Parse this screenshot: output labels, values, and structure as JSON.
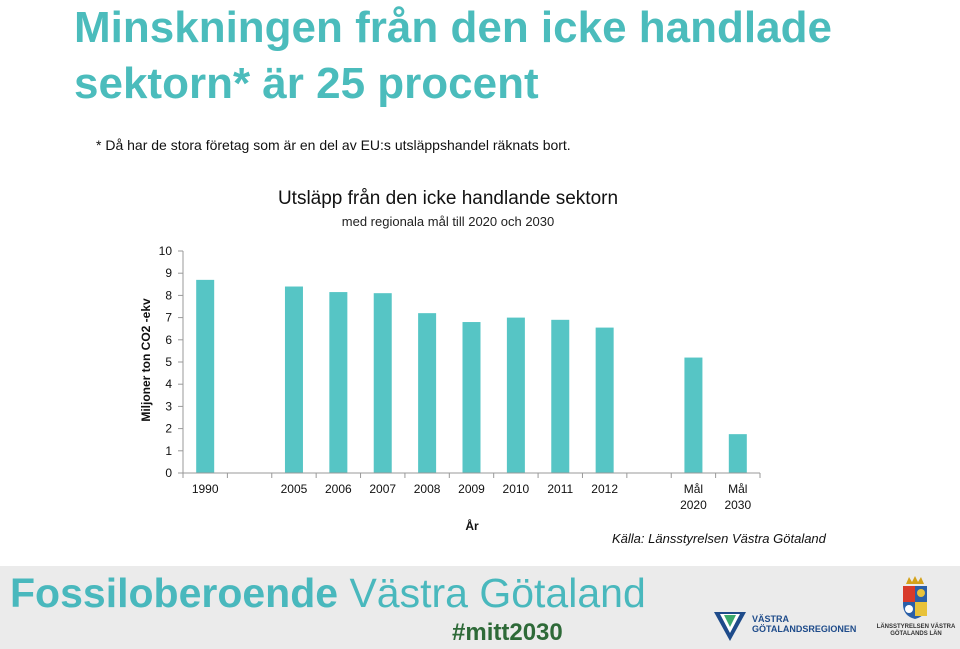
{
  "slide": {
    "title": "Minskningen från den icke handlade sektorn* är 25 procent",
    "footnote": "* Då har de stora företag som är en del av EU:s utsläppshandel räknats bort.",
    "source": "Källa: Länsstyrelsen Västra Götaland"
  },
  "chart_data": {
    "type": "bar",
    "title": "Utsläpp från den icke handlande sektorn",
    "subtitle": "med regionala mål till 2020 och 2030",
    "categories": [
      "1990",
      "",
      "2005",
      "2006",
      "2007",
      "2008",
      "2009",
      "2010",
      "2011",
      "2012",
      "",
      "Mål 2020",
      "Mål 2030"
    ],
    "values": [
      8.7,
      null,
      8.4,
      8.15,
      8.1,
      7.2,
      6.8,
      7.0,
      6.9,
      6.55,
      null,
      5.2,
      1.75
    ],
    "xlabel": "År",
    "ylabel": "Miljoner ton CO2 -ekv",
    "ylim": [
      0,
      10
    ],
    "yticks": [
      0,
      1,
      2,
      3,
      4,
      5,
      6,
      7,
      8,
      9,
      10
    ],
    "grid": false,
    "bar_color": "#56c5c5"
  },
  "footer": {
    "brand_bold": "Fossiloberoende",
    "brand_light": " Västra Götaland",
    "hashtag": "#mitt2030",
    "vgr_name": "VÄSTRA GÖTALANDSREGIONEN",
    "lst_name": "LÄNSSTYRELSEN VÄSTRA GÖTALANDS LÄN",
    "brand_color": "#49b8bd",
    "hashtag_color": "#2e6a38"
  }
}
